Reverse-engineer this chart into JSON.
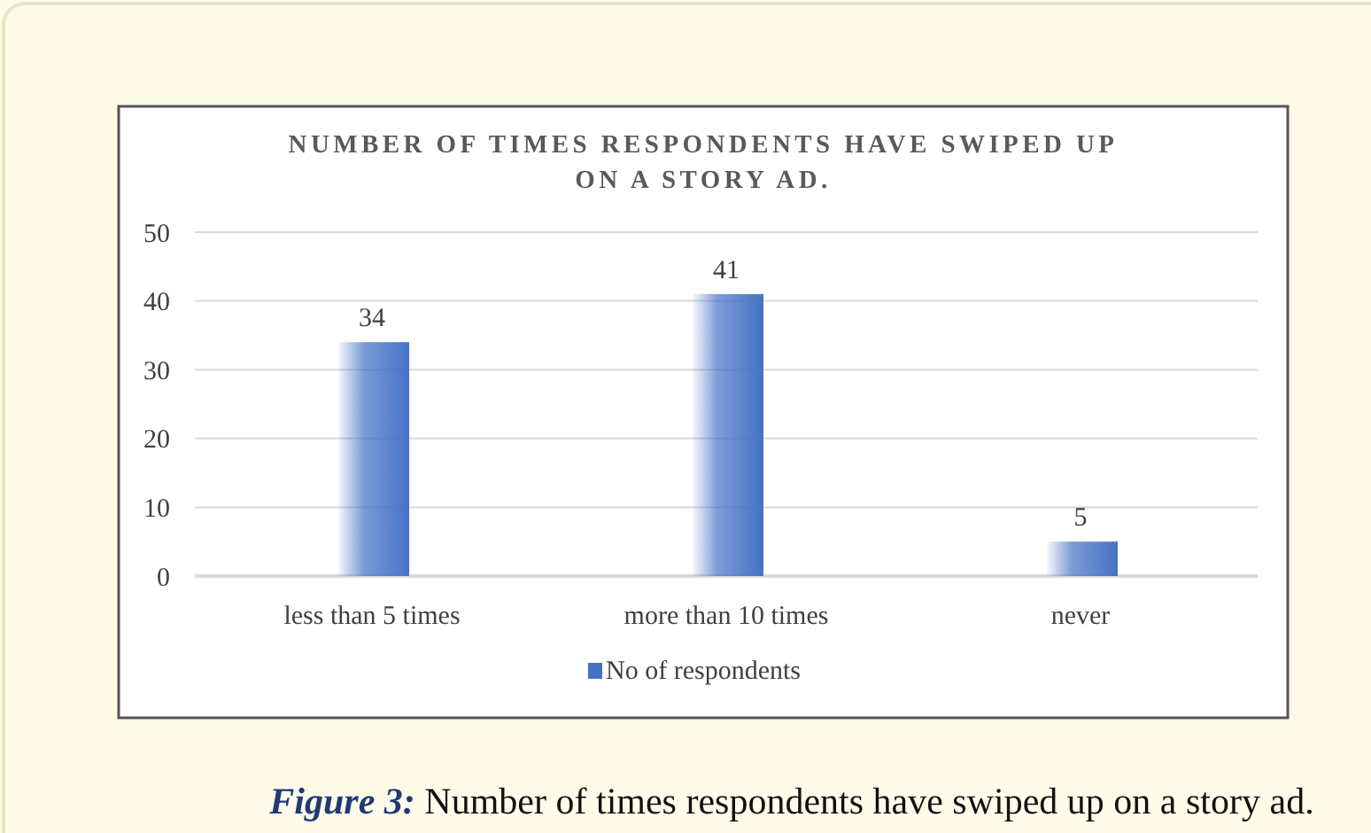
{
  "chart_data": {
    "type": "bar",
    "title": "NUMBER OF TIMES RESPONDENTS HAVE SWIPED UP ON A STORY AD.",
    "categories": [
      "less than 5 times",
      "more than 10 times",
      "never"
    ],
    "series": [
      {
        "name": "No of respondents",
        "color": "#4472c4",
        "values": [
          34,
          41,
          5
        ]
      }
    ],
    "ylim": [
      0,
      50
    ],
    "yticks": [
      0,
      10,
      20,
      30,
      40,
      50
    ],
    "grid": "y",
    "legend": "bottom",
    "data_labels": true,
    "annotations": [
      "Figure 3: Number of times respondents have swiped up on a story ad."
    ]
  }
}
